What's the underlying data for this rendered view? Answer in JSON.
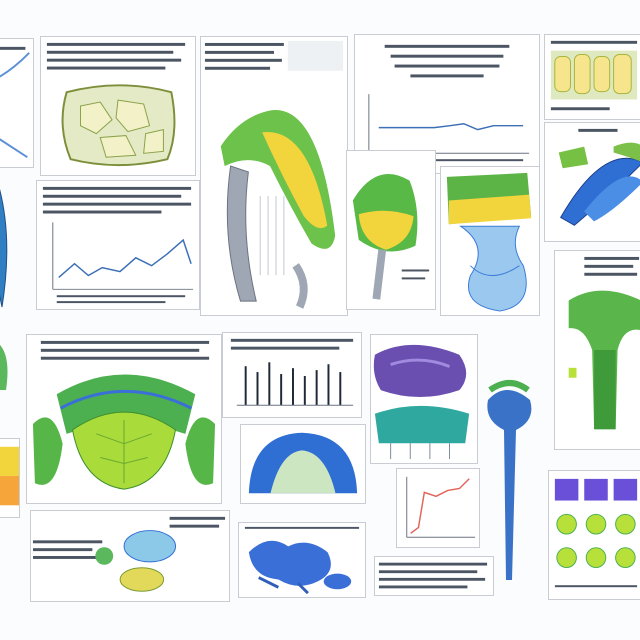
{
  "image": {
    "kind": "collage of scientific illustration panels",
    "legible_text": "none",
    "colors": {
      "paper": "#ffffff",
      "text_lines": "#4b5563",
      "green": "#4caf50",
      "lime": "#b7e03a",
      "yellow": "#f2d53c",
      "blue": "#3b7dd8",
      "purple": "#6a4fb0",
      "red_line": "#e0655a"
    }
  }
}
